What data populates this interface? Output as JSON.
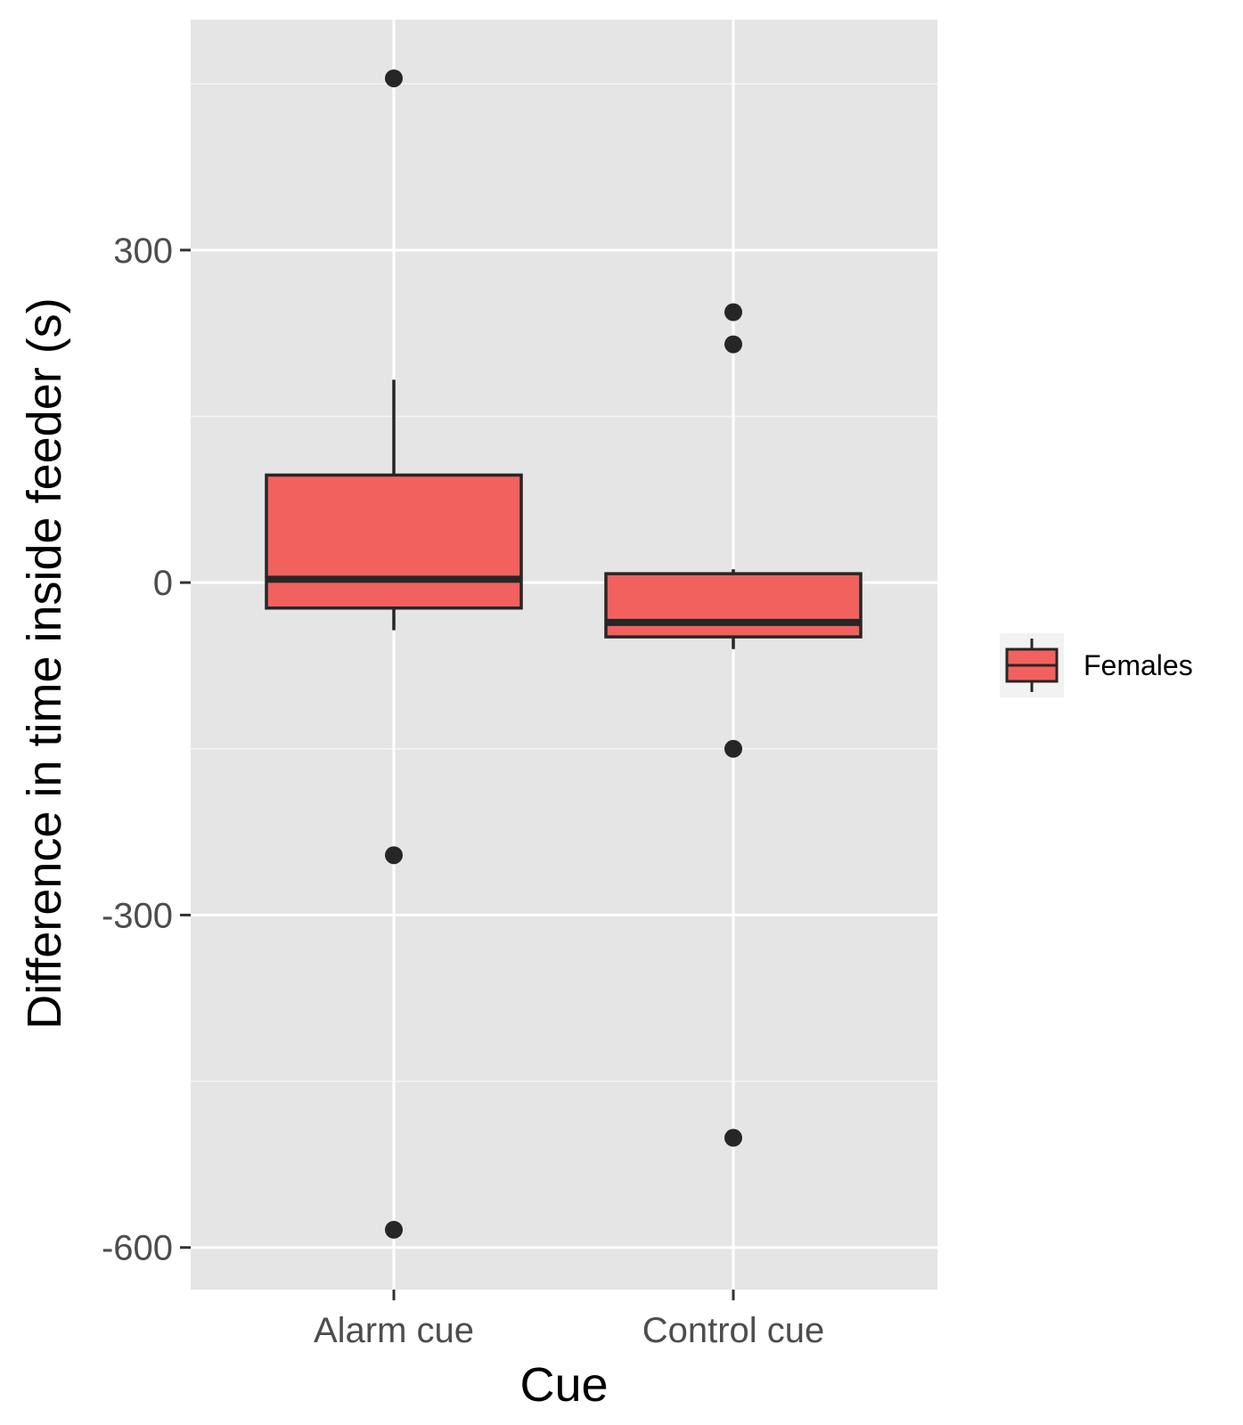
{
  "chart_data": {
    "type": "boxplot",
    "xlabel": "Cue",
    "ylabel": "Difference in time inside feeder (s)",
    "categories": [
      "Alarm cue",
      "Control cue"
    ],
    "ylim": [
      -638,
      508
    ],
    "yticks": [
      300,
      0,
      -300,
      -600
    ],
    "ytick_labels": [
      "300",
      "0",
      "-300",
      "-600"
    ],
    "grid": true,
    "legend_position": "right",
    "series": [
      {
        "name": "Females",
        "color": "#F2615E",
        "boxes": [
          {
            "category": "Alarm cue",
            "lower_whisker": -43,
            "q1": -23,
            "median": 3,
            "q3": 97,
            "upper_whisker": 183,
            "outliers": [
              455,
              -246,
              -584
            ]
          },
          {
            "category": "Control cue",
            "lower_whisker": -60,
            "q1": -49,
            "median": -36,
            "q3": 8,
            "upper_whisker": 12,
            "outliers": [
              244,
              215,
              -150,
              -501
            ]
          }
        ]
      }
    ]
  }
}
